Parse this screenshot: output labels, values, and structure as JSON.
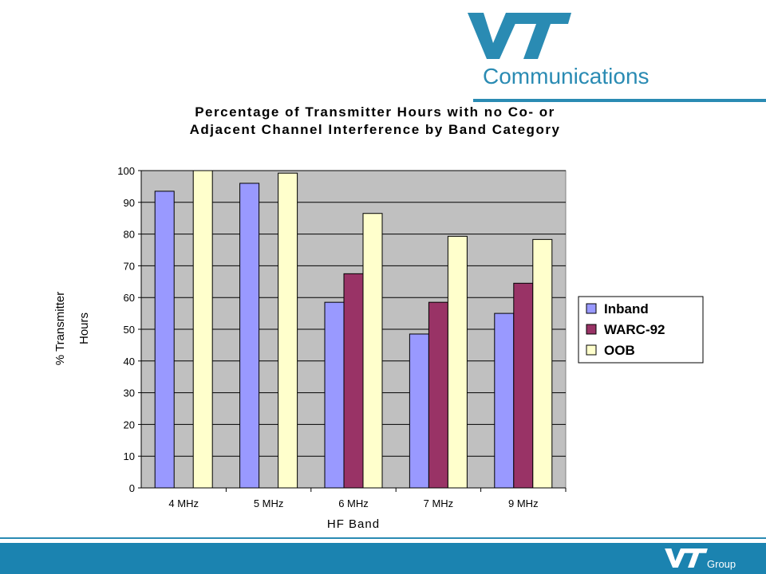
{
  "branding": {
    "logo_text": "VT",
    "subtitle": "Communications",
    "footer_logo": "VT",
    "footer_group": "Group",
    "brand_color": "#2a8bb3",
    "footer_color": "#1b83b0"
  },
  "chart_data": {
    "type": "bar",
    "title_lines": [
      "Percentage of Transmitter Hours with no Co- or",
      "Adjacent Channel Interference by Band Category"
    ],
    "xlabel": "HF Band",
    "ylabel_lines": [
      "% Transmitter",
      "Hours"
    ],
    "categories": [
      "4 MHz",
      "5 MHz",
      "6 MHz",
      "7 MHz",
      "9 MHz"
    ],
    "ylim": [
      0,
      100
    ],
    "yticks": [
      0,
      10,
      20,
      30,
      40,
      50,
      60,
      70,
      80,
      90,
      100
    ],
    "grid": true,
    "legend_position": "right",
    "plot_background": "#c0c0c0",
    "series": [
      {
        "name": "Inband",
        "color": "#9999ff",
        "values": [
          93.5,
          96,
          58.5,
          48.5,
          55
        ]
      },
      {
        "name": "WARC-92",
        "color": "#993366",
        "values": [
          null,
          null,
          67.5,
          58.5,
          64.5
        ]
      },
      {
        "name": "OOB",
        "color": "#ffffcc",
        "values": [
          100,
          99.2,
          86.5,
          79.3,
          78.3
        ]
      }
    ]
  }
}
